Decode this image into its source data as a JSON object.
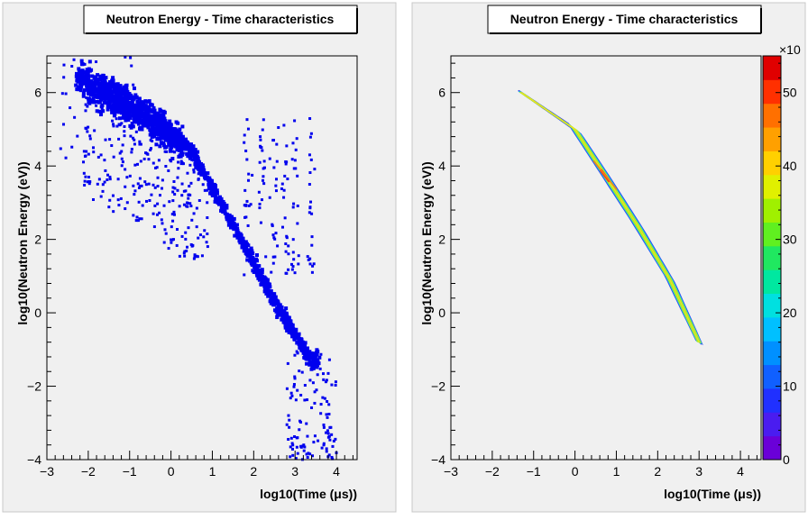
{
  "chart_data": [
    {
      "type": "scatter",
      "title": "Neutron Energy - Time characteristics",
      "xlabel": "log10(Time (μs))",
      "ylabel": "log10(Neutron Energy (eV))",
      "xlim": [
        -3,
        4.5
      ],
      "ylim": [
        -4,
        7
      ],
      "x_ticks": [
        "−3",
        "−2",
        "−1",
        "0",
        "1",
        "2",
        "3",
        "4"
      ],
      "y_ticks": [
        "−4",
        "−2",
        "0",
        "2",
        "4",
        "6"
      ],
      "marker_color": "#0000ee",
      "band_centerline": [
        [
          -2.2,
          6.4
        ],
        [
          -1.5,
          6.0
        ],
        [
          -0.5,
          5.4
        ],
        [
          0.5,
          4.4
        ],
        [
          1.5,
          2.4
        ],
        [
          2.5,
          0.3
        ],
        [
          3.4,
          -1.3
        ]
      ]
    },
    {
      "type": "heatmap",
      "title": "Neutron Energy - Time characteristics",
      "xlabel": "log10(Time (μs))",
      "ylabel": "log10(Neutron Energy (eV))",
      "xlim": [
        -3,
        4.5
      ],
      "ylim": [
        -4,
        7
      ],
      "x_ticks": [
        "−3",
        "−2",
        "−1",
        "0",
        "1",
        "2",
        "3",
        "4"
      ],
      "y_ticks": [
        "−4",
        "−2",
        "0",
        "2",
        "4",
        "6"
      ],
      "colorbar": {
        "ticks": [
          "0",
          "10",
          "20",
          "30",
          "40",
          "50"
        ],
        "exponent_label": "×10",
        "range": [
          0,
          55
        ]
      },
      "ridge": [
        [
          -1.3,
          6.0
        ],
        [
          0,
          5.0
        ],
        [
          0.7,
          3.8
        ],
        [
          1.5,
          2.4
        ],
        [
          2.3,
          0.9
        ],
        [
          3.0,
          -0.8
        ]
      ],
      "peak": [
        0.75,
        3.7
      ]
    }
  ]
}
